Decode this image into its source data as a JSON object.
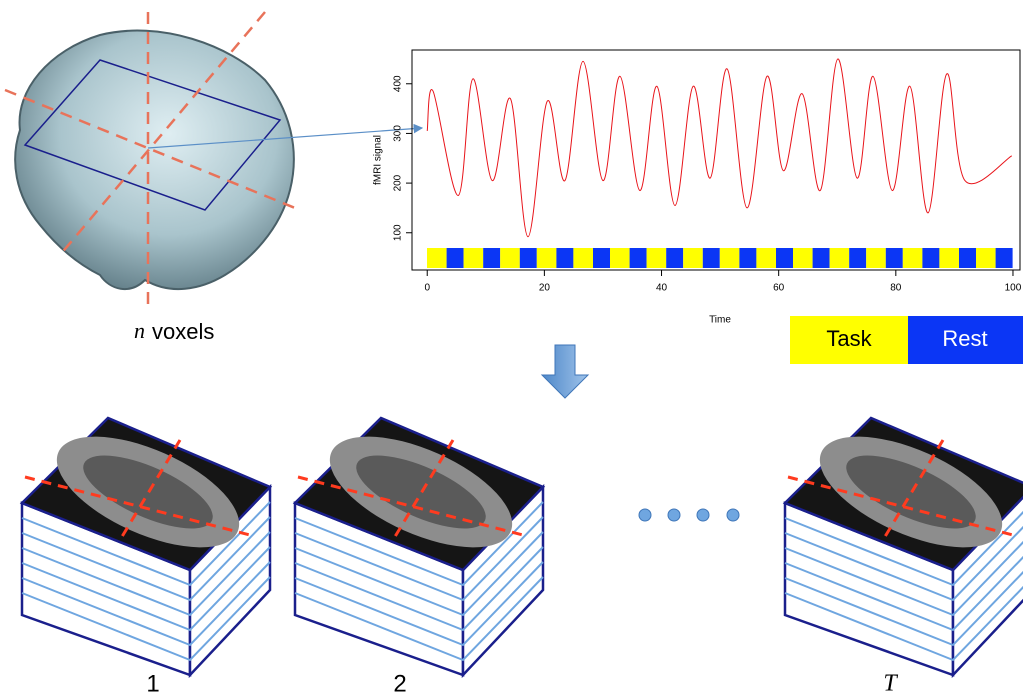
{
  "brain_label": {
    "symbol": "n",
    "text": "voxels"
  },
  "signal_chart": {
    "type": "line",
    "y_label": "fMRI signal",
    "x_label": "Time",
    "x": [
      0,
      1.0,
      5.3,
      7.8,
      11.1,
      14.2,
      17.2,
      20.5,
      23.5,
      26.6,
      30.0,
      32.9,
      36.3,
      39.2,
      42.3,
      45.4,
      48.3,
      51.2,
      54.6,
      58.0,
      60.8,
      64.0,
      67.1,
      70.1,
      73.4,
      76.1,
      79.4,
      82.4,
      85.5,
      88.7,
      91.8,
      99.8
    ],
    "values": [
      305,
      385,
      175,
      410,
      205,
      370,
      92,
      365,
      205,
      445,
      205,
      415,
      185,
      395,
      155,
      395,
      210,
      430,
      150,
      415,
      225,
      380,
      185,
      450,
      210,
      415,
      185,
      395,
      140,
      420,
      205,
      255
    ],
    "color": "#e8141a",
    "xlim": [
      -2.6,
      101.2
    ],
    "ylim": [
      25,
      468
    ],
    "xticks": [
      0,
      20,
      40,
      60,
      80,
      100
    ],
    "yticks": [
      100,
      200,
      300,
      400
    ]
  },
  "legend": {
    "task": "Task",
    "rest": "Rest"
  },
  "volumes": {
    "labels": [
      "1",
      "2",
      "T"
    ]
  }
}
